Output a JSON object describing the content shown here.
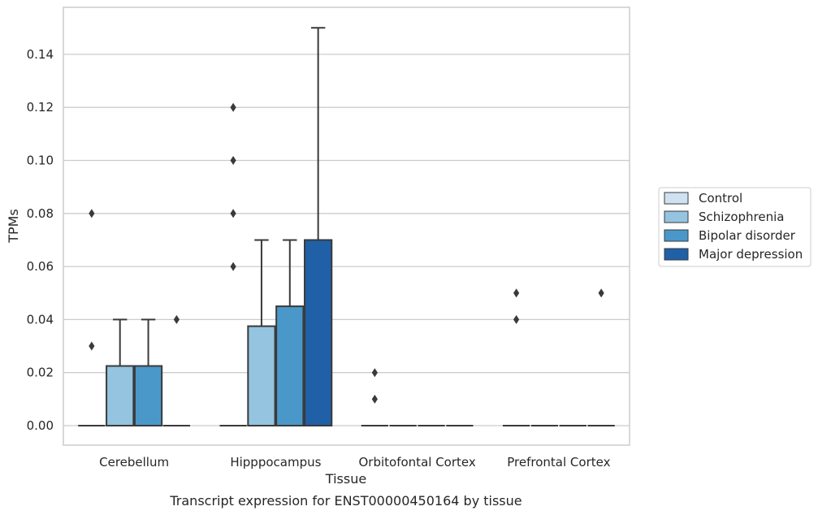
{
  "caption": "Transcript expression for ENST00000450164 by tissue",
  "chart_data": {
    "type": "box",
    "xlabel": "Tissue",
    "ylabel": "TPMs",
    "ylim": [
      -0.0075,
      0.157
    ],
    "yticks": [
      0.0,
      0.02,
      0.04,
      0.06,
      0.08,
      0.1,
      0.12,
      0.14
    ],
    "ytick_labels": [
      "0.00",
      "0.02",
      "0.04",
      "0.06",
      "0.08",
      "0.10",
      "0.12",
      "0.14"
    ],
    "grid": "horizontal",
    "legend_position": "right",
    "categories": [
      "Cerebellum",
      "Hipppocampus",
      "Orbitofontal Cortex",
      "Prefrontal Cortex"
    ],
    "series": [
      {
        "name": "Control",
        "color": "#d0e1f2",
        "boxes": [
          {
            "q1": 0,
            "median": 0,
            "q3": 0,
            "whislo": 0,
            "whishi": 0,
            "fliers": [
              0.03,
              0.08
            ]
          },
          {
            "q1": 0,
            "median": 0,
            "q3": 0,
            "whislo": 0,
            "whishi": 0,
            "fliers": [
              0.06,
              0.08,
              0.1,
              0.12
            ]
          },
          {
            "q1": 0,
            "median": 0,
            "q3": 0,
            "whislo": 0,
            "whishi": 0,
            "fliers": [
              0.01,
              0.02
            ]
          },
          {
            "q1": 0,
            "median": 0,
            "q3": 0,
            "whislo": 0,
            "whishi": 0,
            "fliers": [
              0.04,
              0.05
            ]
          }
        ]
      },
      {
        "name": "Schizophrenia",
        "color": "#94c4df",
        "boxes": [
          {
            "q1": 0,
            "median": 0,
            "q3": 0.0225,
            "whislo": 0,
            "whishi": 0.04,
            "fliers": []
          },
          {
            "q1": 0,
            "median": 0,
            "q3": 0.0375,
            "whislo": 0,
            "whishi": 0.07,
            "fliers": []
          },
          {
            "q1": 0,
            "median": 0,
            "q3": 0,
            "whislo": 0,
            "whishi": 0,
            "fliers": []
          },
          {
            "q1": 0,
            "median": 0,
            "q3": 0,
            "whislo": 0,
            "whishi": 0,
            "fliers": []
          }
        ]
      },
      {
        "name": "Bipolar disorder",
        "color": "#4a98c9",
        "boxes": [
          {
            "q1": 0,
            "median": 0,
            "q3": 0.0225,
            "whislo": 0,
            "whishi": 0.04,
            "fliers": []
          },
          {
            "q1": 0,
            "median": 0,
            "q3": 0.045,
            "whislo": 0,
            "whishi": 0.07,
            "fliers": []
          },
          {
            "q1": 0,
            "median": 0,
            "q3": 0,
            "whislo": 0,
            "whishi": 0,
            "fliers": []
          },
          {
            "q1": 0,
            "median": 0,
            "q3": 0,
            "whislo": 0,
            "whishi": 0,
            "fliers": []
          }
        ]
      },
      {
        "name": "Major depression",
        "color": "#2060a7",
        "boxes": [
          {
            "q1": 0,
            "median": 0,
            "q3": 0,
            "whislo": 0,
            "whishi": 0,
            "fliers": [
              0.04
            ]
          },
          {
            "q1": 0,
            "median": 0,
            "q3": 0.07,
            "whislo": 0,
            "whishi": 0.15,
            "fliers": []
          },
          {
            "q1": 0,
            "median": 0,
            "q3": 0,
            "whislo": 0,
            "whishi": 0,
            "fliers": []
          },
          {
            "q1": 0,
            "median": 0,
            "q3": 0,
            "whislo": 0,
            "whishi": 0,
            "fliers": [
              0.05
            ]
          }
        ]
      }
    ]
  }
}
